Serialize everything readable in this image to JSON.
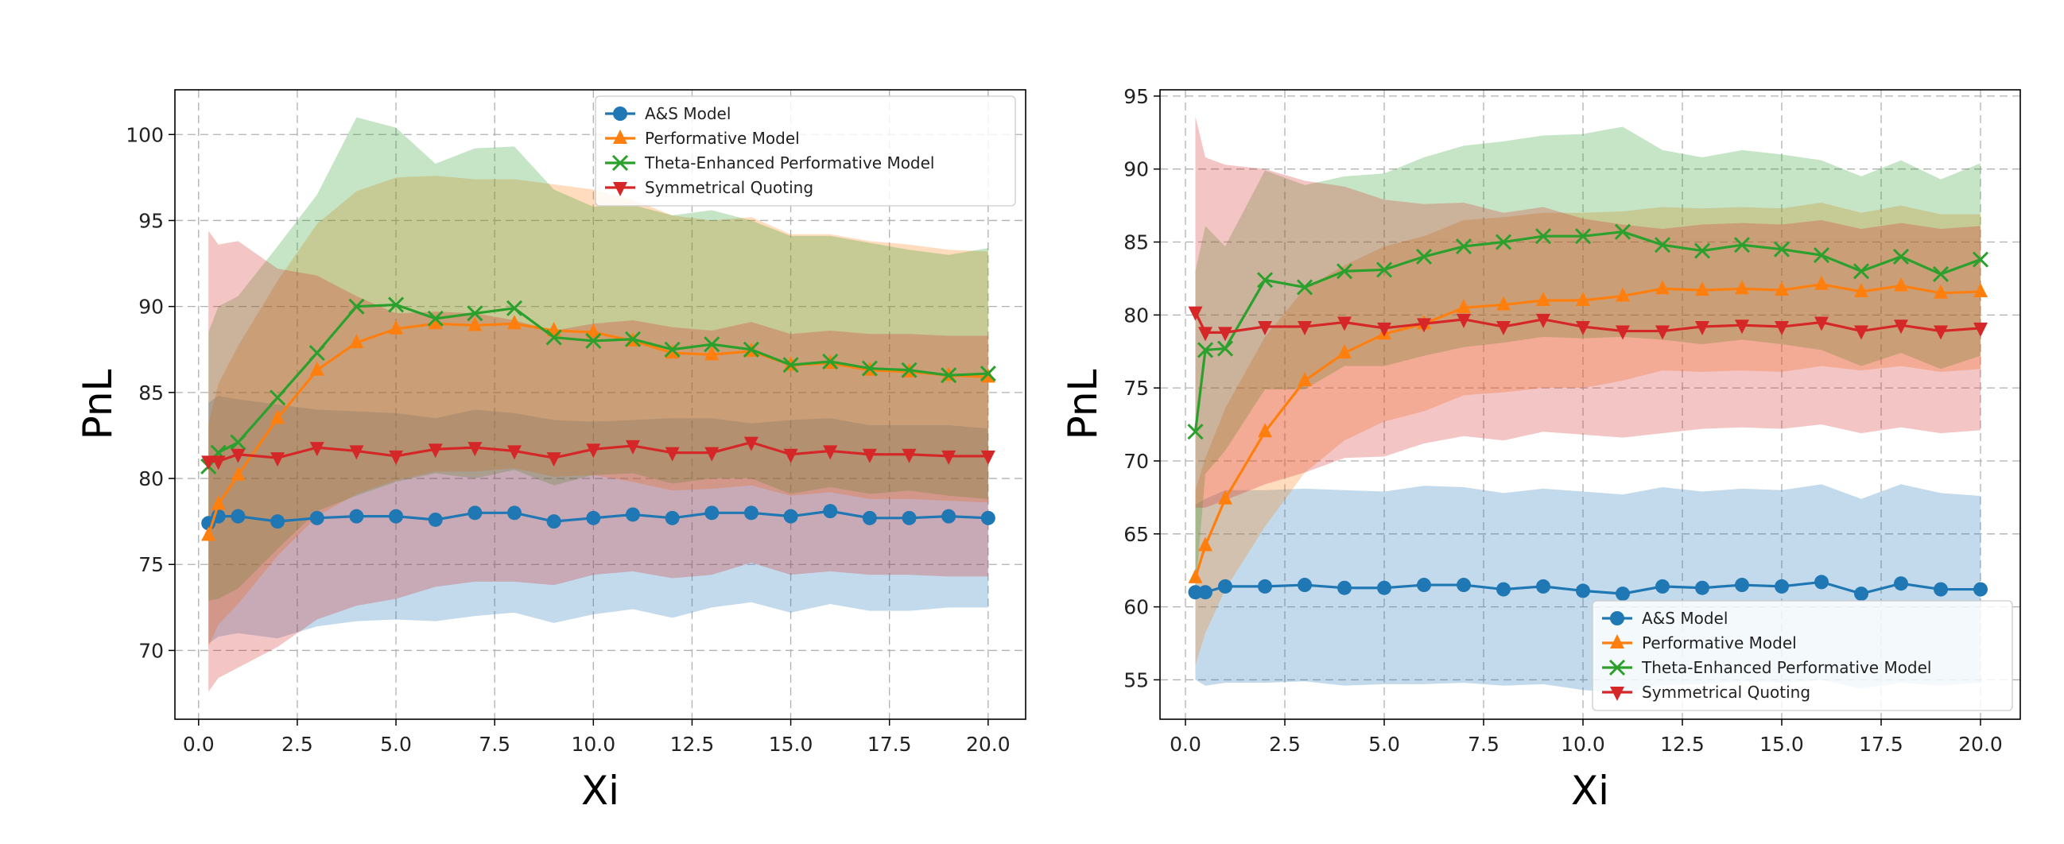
{
  "chart_data": [
    {
      "type": "line",
      "xlabel": "Xi",
      "ylabel": "PnL",
      "xlim": [
        -0.6,
        20.95
      ],
      "ylim": [
        66.0,
        102.6
      ],
      "xticks": [
        "0.0",
        "2.5",
        "5.0",
        "7.5",
        "10.0",
        "12.5",
        "15.0",
        "17.5",
        "20.0"
      ],
      "yticks": [
        "70",
        "75",
        "80",
        "85",
        "90",
        "95",
        "100"
      ],
      "grid": true,
      "legend_position": "top-right",
      "x": [
        0.25,
        0.5,
        1,
        2,
        3,
        4,
        5,
        6,
        7,
        8,
        9,
        10,
        11,
        12,
        13,
        14,
        15,
        16,
        17,
        18,
        19,
        20
      ],
      "series": [
        {
          "name": "A&S Model",
          "color": "#1f77b4",
          "marker": "circle",
          "values": [
            77.4,
            77.8,
            77.8,
            77.5,
            77.7,
            77.8,
            77.8,
            77.6,
            78.0,
            78.0,
            77.5,
            77.7,
            77.9,
            77.7,
            78.0,
            78.0,
            77.8,
            78.1,
            77.7,
            77.7,
            77.8,
            77.7
          ],
          "std": [
            7.0,
            7.0,
            6.8,
            6.8,
            6.3,
            6.1,
            6.0,
            5.9,
            6.0,
            5.8,
            5.9,
            5.6,
            5.5,
            5.8,
            5.5,
            5.2,
            5.6,
            5.4,
            5.4,
            5.4,
            5.3,
            5.2
          ]
        },
        {
          "name": "Performative Model",
          "color": "#ff7f0e",
          "marker": "triangle-up",
          "values": [
            76.7,
            78.5,
            80.2,
            83.5,
            86.3,
            87.9,
            88.7,
            89.0,
            88.9,
            89.0,
            88.6,
            88.5,
            88.0,
            87.3,
            87.2,
            87.4,
            86.6,
            86.7,
            86.3,
            86.2,
            86.0,
            85.9
          ],
          "std": [
            6.5,
            7.0,
            7.5,
            8.0,
            8.5,
            8.8,
            8.8,
            8.6,
            8.5,
            8.4,
            8.5,
            8.3,
            8.2,
            8.0,
            7.8,
            7.8,
            7.6,
            7.5,
            7.5,
            7.4,
            7.3,
            7.3
          ]
        },
        {
          "name": "Theta-Enhanced Performative Model",
          "color": "#2ca02c",
          "marker": "x",
          "values": [
            80.7,
            81.5,
            82.1,
            84.7,
            87.3,
            90.0,
            90.1,
            89.3,
            89.6,
            89.9,
            88.2,
            88.0,
            88.1,
            87.5,
            87.8,
            87.5,
            86.6,
            86.8,
            86.4,
            86.3,
            86.0,
            86.1
          ],
          "std": [
            7.8,
            8.5,
            8.5,
            8.8,
            9.2,
            11.0,
            10.3,
            9.0,
            9.6,
            9.4,
            8.6,
            7.8,
            7.8,
            7.8,
            7.8,
            7.5,
            7.5,
            7.3,
            7.3,
            7.0,
            7.0,
            7.3
          ]
        },
        {
          "name": "Symmetrical Quoting",
          "color": "#d62728",
          "marker": "triangle-down",
          "values": [
            81.0,
            81.0,
            81.4,
            81.2,
            81.8,
            81.6,
            81.3,
            81.7,
            81.8,
            81.6,
            81.2,
            81.7,
            81.9,
            81.5,
            81.5,
            82.1,
            81.4,
            81.6,
            81.4,
            81.4,
            81.3,
            81.3
          ],
          "std": [
            13.4,
            12.6,
            12.4,
            11.0,
            10.0,
            9.0,
            8.3,
            8.0,
            7.8,
            7.6,
            7.4,
            7.3,
            7.3,
            7.3,
            7.1,
            7.0,
            7.0,
            7.0,
            7.0,
            7.0,
            7.0,
            7.0
          ]
        }
      ]
    },
    {
      "type": "line",
      "xlabel": "Xi",
      "ylabel": "PnL",
      "xlim": [
        -0.64,
        21.0
      ],
      "ylim": [
        52.3,
        95.43
      ],
      "xticks": [
        "0.0",
        "2.5",
        "5.0",
        "7.5",
        "10.0",
        "12.5",
        "15.0",
        "17.5",
        "20.0"
      ],
      "yticks": [
        "55",
        "60",
        "65",
        "70",
        "75",
        "80",
        "85",
        "90",
        "95"
      ],
      "grid": true,
      "legend_position": "lower-right",
      "x": [
        0.25,
        0.5,
        1,
        2,
        3,
        4,
        5,
        6,
        7,
        8,
        9,
        10,
        11,
        12,
        13,
        14,
        15,
        16,
        17,
        18,
        19,
        20
      ],
      "series": [
        {
          "name": "A&S Model",
          "color": "#1f77b4",
          "marker": "circle",
          "values": [
            61.0,
            61.0,
            61.4,
            61.4,
            61.5,
            61.3,
            61.3,
            61.5,
            61.5,
            61.2,
            61.4,
            61.1,
            60.9,
            61.4,
            61.3,
            61.5,
            61.4,
            61.7,
            60.9,
            61.6,
            61.2,
            61.2
          ],
          "std": [
            6.0,
            6.4,
            6.6,
            6.6,
            6.6,
            6.7,
            6.6,
            6.8,
            6.7,
            6.6,
            6.7,
            6.8,
            6.8,
            6.8,
            6.6,
            6.6,
            6.6,
            6.7,
            6.5,
            6.8,
            6.6,
            6.4
          ]
        },
        {
          "name": "Performative Model",
          "color": "#ff7f0e",
          "marker": "triangle-up",
          "values": [
            62.0,
            64.2,
            67.4,
            72.0,
            75.5,
            77.4,
            78.7,
            79.4,
            80.5,
            80.7,
            81.0,
            81.0,
            81.3,
            81.8,
            81.7,
            81.8,
            81.7,
            82.1,
            81.6,
            82.0,
            81.5,
            81.6
          ],
          "std": [
            6.0,
            6.0,
            6.2,
            6.5,
            6.3,
            6.0,
            6.0,
            6.0,
            6.0,
            6.0,
            6.0,
            6.0,
            5.8,
            5.6,
            5.6,
            5.6,
            5.6,
            5.6,
            5.4,
            5.5,
            5.4,
            5.3
          ]
        },
        {
          "name": "Theta-Enhanced Performative Model",
          "color": "#2ca02c",
          "marker": "x",
          "values": [
            72.0,
            77.6,
            77.7,
            82.4,
            81.9,
            83.0,
            83.1,
            84.0,
            84.7,
            85.0,
            85.4,
            85.4,
            85.7,
            84.8,
            84.4,
            84.8,
            84.5,
            84.1,
            83.0,
            84.0,
            82.8,
            83.8
          ],
          "std": [
            11.0,
            8.5,
            7.0,
            7.5,
            7.0,
            6.5,
            6.6,
            6.8,
            6.9,
            6.9,
            6.9,
            7.0,
            7.2,
            6.5,
            6.4,
            6.5,
            6.5,
            6.5,
            6.5,
            6.6,
            6.5,
            6.6
          ]
        },
        {
          "name": "Symmetrical Quoting",
          "color": "#d62728",
          "marker": "triangle-down",
          "values": [
            80.2,
            78.8,
            78.8,
            79.2,
            79.2,
            79.5,
            79.1,
            79.4,
            79.7,
            79.2,
            79.7,
            79.2,
            78.9,
            78.9,
            79.2,
            79.3,
            79.2,
            79.5,
            78.9,
            79.3,
            78.9,
            79.1
          ],
          "std": [
            13.4,
            12.0,
            11.5,
            10.8,
            10.0,
            9.3,
            8.8,
            8.2,
            8.0,
            7.8,
            7.7,
            7.4,
            7.3,
            7.0,
            7.0,
            7.0,
            7.0,
            7.0,
            7.0,
            7.0,
            7.0,
            7.0
          ]
        }
      ]
    }
  ]
}
